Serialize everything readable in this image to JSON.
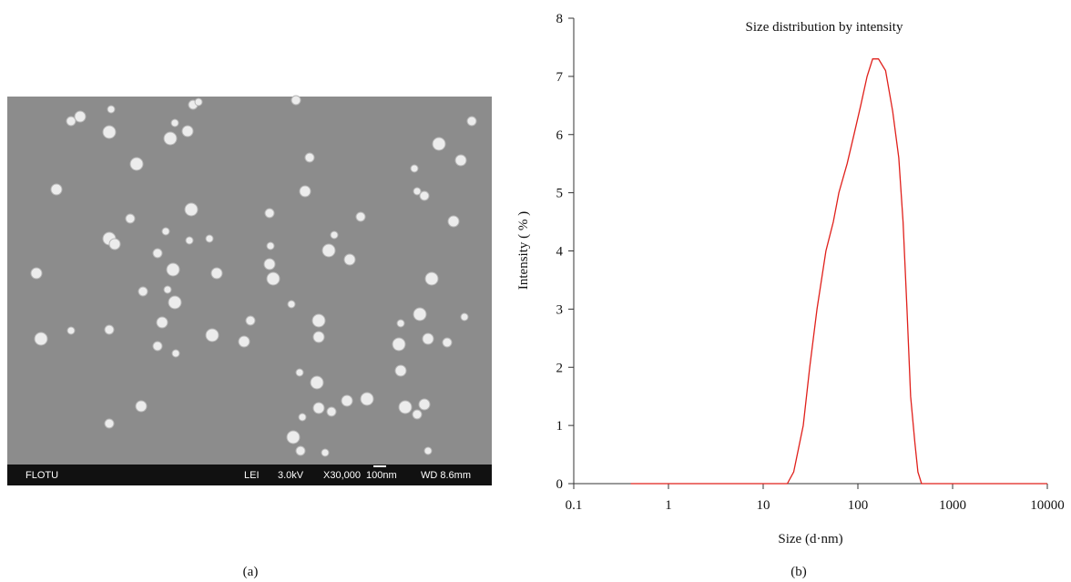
{
  "panels": {
    "a": "(a)",
    "b": "(b)"
  },
  "image": {
    "bar": [
      "FLOTU",
      "LEI",
      "3.0kV",
      "X30,000",
      "100nm",
      "WD 8.6mm"
    ]
  },
  "chart_data": {
    "type": "line",
    "title": "Size distribution by intensity",
    "xlabel": "Size (d·nm)",
    "ylabel": "Intensity ( % )",
    "xscale": "log",
    "xlim": [
      0.1,
      10000
    ],
    "xticks": [
      0.1,
      1,
      10,
      100,
      1000,
      10000
    ],
    "ylim": [
      0,
      8
    ],
    "yticks": [
      0,
      1,
      2,
      3,
      4,
      5,
      6,
      7,
      8
    ],
    "color": "#e0201b",
    "x": [
      0.4,
      1,
      10,
      18,
      21,
      26.5,
      31,
      37,
      46,
      55,
      63,
      77,
      91,
      107,
      125,
      143,
      165,
      196,
      233,
      270,
      300,
      330,
      360,
      400,
      430,
      470,
      1000,
      10000
    ],
    "values": [
      0,
      0,
      0,
      0,
      0.2,
      1,
      2,
      3,
      4,
      4.5,
      5,
      5.5,
      6,
      6.5,
      7,
      7.3,
      7.3,
      7.1,
      6.4,
      5.6,
      4.5,
      3,
      1.5,
      0.7,
      0.2,
      0,
      0,
      0
    ]
  }
}
